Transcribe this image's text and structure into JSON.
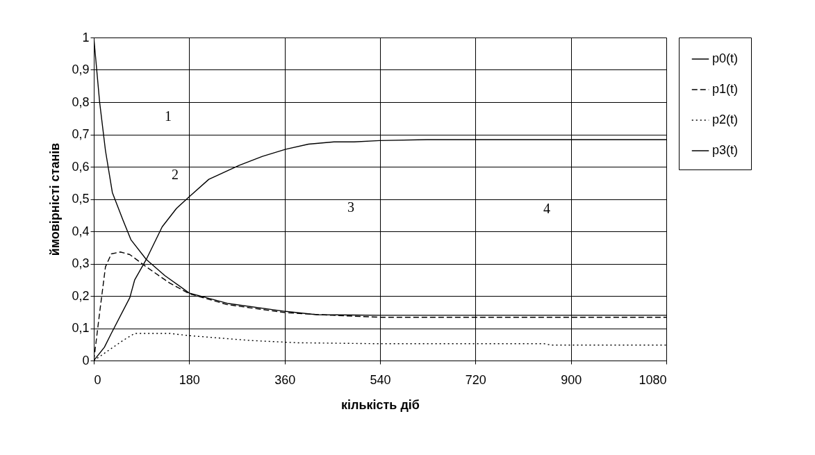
{
  "chart_data": {
    "type": "line",
    "xlabel": "кількість діб",
    "ylabel": "ймовірністі станів",
    "xlim": [
      0,
      1080
    ],
    "xticks": [
      0,
      180,
      360,
      540,
      720,
      900,
      1080
    ],
    "ylim": [
      0,
      1
    ],
    "yticks": [
      0,
      {
        "value": 0.1,
        "label": "0,1"
      },
      {
        "value": 0.2,
        "label": "0,2"
      },
      {
        "value": 0.3,
        "label": "0,3"
      },
      {
        "value": 0.4,
        "label": "0,4"
      },
      {
        "value": 0.5,
        "label": "0,5"
      },
      {
        "value": 0.6,
        "label": "0,6"
      },
      {
        "value": 0.7,
        "label": "0,7"
      },
      {
        "value": 0.8,
        "label": "0,8"
      },
      {
        "value": 0.9,
        "label": "0,9"
      },
      1
    ],
    "grid": true,
    "legend": "right",
    "marker": "none",
    "series": [
      {
        "name": "p0(t)",
        "color": "#000000",
        "line_style": "solid",
        "x": [
          0,
          11,
          22,
          35,
          55,
          70,
          99,
          134,
          180,
          252,
          362,
          420,
          540,
          720,
          900,
          1080
        ],
        "values": [
          1,
          0.8,
          0.65,
          0.52,
          0.435,
          0.374,
          0.313,
          0.263,
          0.209,
          0.177,
          0.152,
          0.142,
          0.14,
          0.14,
          0.14,
          0.14
        ]
      },
      {
        "name": "p1(t)",
        "color": "#000000",
        "line_style": "dashed",
        "x": [
          0,
          11,
          22,
          33,
          50,
          68,
          99,
          143,
          180,
          252,
          362,
          450,
          540,
          720,
          900,
          1080
        ],
        "values": [
          0,
          0.148,
          0.29,
          0.33,
          0.336,
          0.328,
          0.29,
          0.24,
          0.207,
          0.173,
          0.148,
          0.14,
          0.134,
          0.134,
          0.134,
          0.134
        ]
      },
      {
        "name": "p2(t)",
        "color": "#000000",
        "line_style": "dotted",
        "x": [
          0,
          24,
          55,
          77,
          143,
          180,
          296,
          384,
          540,
          720,
          850,
          862,
          1080
        ],
        "values": [
          0,
          0.027,
          0.062,
          0.084,
          0.084,
          0.077,
          0.062,
          0.055,
          0.052,
          0.052,
          0.052,
          0.048,
          0.048
        ]
      },
      {
        "name": "p3(t)",
        "color": "#000000",
        "line_style": "solid",
        "x": [
          0,
          20,
          33,
          68,
          77,
          99,
          129,
          156,
          180,
          217,
          274,
          318,
          362,
          405,
          453,
          491,
          539,
          629,
          720,
          900,
          1080
        ],
        "values": [
          0,
          0.041,
          0.084,
          0.195,
          0.249,
          0.313,
          0.414,
          0.471,
          0.507,
          0.561,
          0.604,
          0.632,
          0.654,
          0.67,
          0.677,
          0.677,
          0.681,
          0.684,
          0.684,
          0.684,
          0.684
        ]
      }
    ],
    "annotations": [
      "1",
      "2",
      "3",
      "4"
    ]
  }
}
